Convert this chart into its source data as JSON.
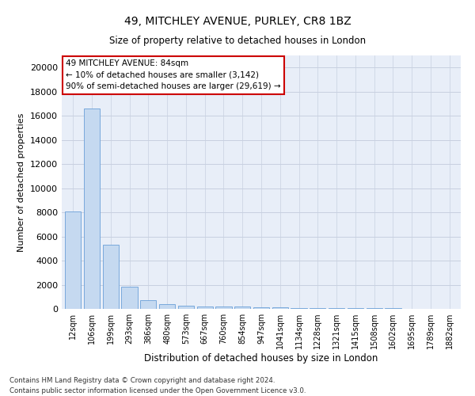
{
  "title1": "49, MITCHLEY AVENUE, PURLEY, CR8 1BZ",
  "title2": "Size of property relative to detached houses in London",
  "xlabel": "Distribution of detached houses by size in London",
  "ylabel": "Number of detached properties",
  "categories": [
    "12sqm",
    "106sqm",
    "199sqm",
    "293sqm",
    "386sqm",
    "480sqm",
    "573sqm",
    "667sqm",
    "760sqm",
    "854sqm",
    "947sqm",
    "1041sqm",
    "1134sqm",
    "1228sqm",
    "1321sqm",
    "1415sqm",
    "1508sqm",
    "1602sqm",
    "1695sqm",
    "1789sqm",
    "1882sqm"
  ],
  "values": [
    8100,
    16600,
    5300,
    1850,
    700,
    380,
    270,
    210,
    200,
    170,
    130,
    110,
    90,
    70,
    60,
    50,
    40,
    35,
    30,
    25,
    20
  ],
  "bar_color": "#c5d9f0",
  "bar_edge_color": "#6a9fd8",
  "grid_color": "#c8d0e0",
  "background_color": "#e8eef8",
  "ylim": [
    0,
    21000
  ],
  "yticks": [
    0,
    2000,
    4000,
    6000,
    8000,
    10000,
    12000,
    14000,
    16000,
    18000,
    20000
  ],
  "annotation_text": "49 MITCHLEY AVENUE: 84sqm\n← 10% of detached houses are smaller (3,142)\n90% of semi-detached houses are larger (29,619) →",
  "annotation_box_color": "#ffffff",
  "annotation_border_color": "#cc0000",
  "footer1": "Contains HM Land Registry data © Crown copyright and database right 2024.",
  "footer2": "Contains public sector information licensed under the Open Government Licence v3.0."
}
